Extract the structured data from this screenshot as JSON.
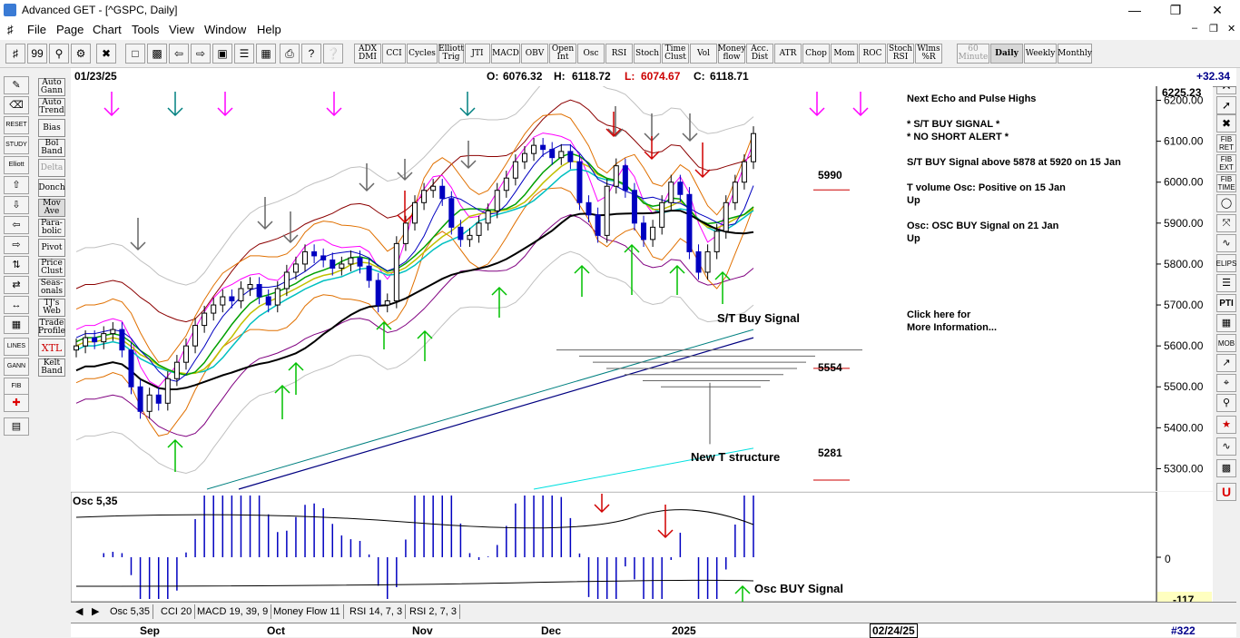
{
  "window": {
    "title": "Advanced GET - [^GSPC, Daily]"
  },
  "menu": [
    "File",
    "Page",
    "Chart",
    "Tools",
    "View",
    "Window",
    "Help"
  ],
  "toolbar": {
    "studies": [
      "ADX DMI",
      "CCI",
      "Cycles",
      "Elliott Trig",
      "JTI",
      "MACD",
      "OBV",
      "Open Int",
      "Osc",
      "RSI",
      "Stoch",
      "Time Clust",
      "Vol",
      "Money flow",
      "Acc. Dist",
      "ATR",
      "Chop",
      "Mom",
      "ROC",
      "Stoch RSI",
      "Wlms %R"
    ],
    "timeframes": [
      "60 Minute",
      "Daily",
      "Weekly",
      "Monthly"
    ],
    "active_timeframe": "Daily"
  },
  "left_studies": [
    "Auto Gann",
    "Auto Trend",
    "Bias",
    "Bol Band",
    "Delta",
    "Donch",
    "Mov Ave",
    "Para-bolic",
    "Pivot",
    "Price Clust",
    "Seas-onals",
    "TJ's Web",
    "Trade Profile",
    "XTL",
    "Kelt Band"
  ],
  "left_tools": [
    "RESET",
    "STUDY",
    "Elliott",
    "LINES",
    "GANN",
    "FIB"
  ],
  "right_tools": [
    "FIB RET",
    "FIB EXT",
    "FIB TIME",
    "ELIPS",
    "PTI",
    "MOB"
  ],
  "header": {
    "date": "01/23/25",
    "open_label": "O:",
    "open": "6076.32",
    "high_label": "H:",
    "high": "6118.72",
    "low_label": "L:",
    "low": "6074.67",
    "close_label": "C:",
    "close": "6118.71",
    "change": "+32.34"
  },
  "annotations": {
    "next_echo": "Next Echo and Pulse Highs",
    "st_buy_signal": "* S/T BUY SIGNAL *",
    "no_short_alert": "* NO SHORT ALERT *",
    "st_buy_above": "S/T BUY Signal above 5878 at 5920 on 15 Jan",
    "t_volume_osc": "T volume Osc: Positive on 15 Jan",
    "t_volume_dir": "Up",
    "osc_line": "Osc: OSC BUY Signal on 21 Jan",
    "osc_dir": "Up",
    "click_here": "Click here for",
    "more_info": "More Information...",
    "st_buy_label": "S/T Buy Signal",
    "new_t_structure": "New T structure",
    "level_5990": "5990",
    "level_5554": "5554",
    "level_5281": "5281",
    "osc_buy_label": "Osc BUY Signal"
  },
  "osc_panel": {
    "title": "Osc 5,35",
    "zero": "0",
    "low": "-117"
  },
  "tabs": [
    "Osc 5,35",
    "CCI 20",
    "MACD 19, 39, 9",
    "Money Flow 11",
    "RSI 14, 7, 3",
    "RSI 2, 7, 3"
  ],
  "date_axis": {
    "labels": [
      "Sep",
      "Oct",
      "Nov",
      "Dec",
      "2025"
    ],
    "cursor_date": "02/24/25",
    "bar_count": "#322"
  },
  "chart_data": {
    "type": "candlestick",
    "symbol": "^GSPC",
    "period": "Daily",
    "y_ticks": [
      6200,
      6100,
      6000,
      5900,
      5800,
      5700,
      5600,
      5500,
      5400,
      5300
    ],
    "y_top_label": "6225.23",
    "ylim": [
      5250,
      6230
    ],
    "levels": [
      {
        "label": "5990",
        "value": 5990
      },
      {
        "label": "5554",
        "value": 5554
      },
      {
        "label": "5281",
        "value": 5281
      }
    ],
    "closes": [
      5600,
      5620,
      5610,
      5630,
      5640,
      5590,
      5500,
      5440,
      5480,
      5460,
      5520,
      5560,
      5600,
      5650,
      5680,
      5700,
      5720,
      5710,
      5740,
      5750,
      5720,
      5700,
      5740,
      5780,
      5800,
      5830,
      5820,
      5810,
      5790,
      5800,
      5815,
      5795,
      5760,
      5700,
      5710,
      5850,
      5900,
      5950,
      5980,
      5990,
      5960,
      5890,
      5860,
      5870,
      5900,
      5930,
      5980,
      6010,
      6050,
      6070,
      6090,
      6080,
      6060,
      6075,
      6050,
      5950,
      5920,
      5870,
      5990,
      6040,
      5980,
      5900,
      5860,
      5890,
      5950,
      6000,
      5970,
      5830,
      5780,
      5830,
      5880,
      5950,
      6000,
      6050,
      6118.71
    ],
    "oscillator": {
      "ylim": [
        -117,
        100
      ],
      "zero": 0
    }
  }
}
